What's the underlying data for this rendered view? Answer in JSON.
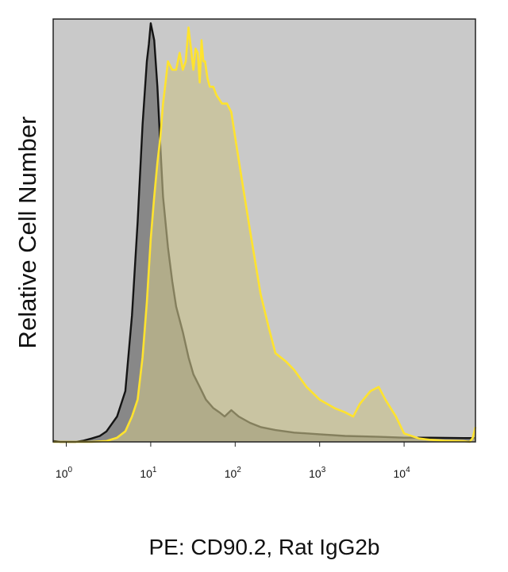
{
  "chart_data": {
    "type": "area",
    "title": "",
    "xlabel": "PE: CD90.2, Rat IgG2b",
    "ylabel": "Relative Cell Number",
    "x_scale": "log",
    "xlim": [
      0.7,
      70000
    ],
    "ylim": [
      0,
      1.0
    ],
    "grid": false,
    "x_ticks": [
      {
        "value": 1,
        "base": "10",
        "exp": "0"
      },
      {
        "value": 10,
        "base": "10",
        "exp": "1"
      },
      {
        "value": 100,
        "base": "10",
        "exp": "2"
      },
      {
        "value": 1000,
        "base": "10",
        "exp": "3"
      },
      {
        "value": 10000,
        "base": "10",
        "exp": "4"
      }
    ],
    "colors": {
      "plot_background": "#c9c9c9",
      "isotype_line": "#141414",
      "isotype_fill": "#7d7d7d",
      "stained_line": "#ffe32e",
      "stained_fill": "#c9c28b"
    },
    "series": [
      {
        "style": "isotype",
        "x": [
          0.7,
          0.85,
          1.0,
          1.3,
          1.6,
          2.0,
          2.5,
          3.0,
          4.0,
          5.0,
          6.0,
          7.0,
          8.0,
          9.0,
          9.5,
          10.0,
          11.0,
          12.0,
          13.0,
          14.0,
          16.0,
          18.0,
          20.0,
          24.0,
          28.0,
          32.0,
          38.0,
          45.0,
          55.0,
          65.0,
          75.0,
          90.0,
          110.0,
          150.0,
          200.0,
          300.0,
          500.0,
          1000.0,
          2000.0,
          5000.0,
          10000.0,
          20000.0,
          50000.0,
          70000.0
        ],
        "y": [
          0.002,
          0.0,
          0.0,
          0.0,
          0.003,
          0.008,
          0.014,
          0.025,
          0.06,
          0.12,
          0.3,
          0.52,
          0.75,
          0.9,
          0.94,
          0.99,
          0.95,
          0.84,
          0.7,
          0.58,
          0.46,
          0.38,
          0.32,
          0.26,
          0.2,
          0.16,
          0.13,
          0.1,
          0.08,
          0.07,
          0.06,
          0.075,
          0.06,
          0.045,
          0.035,
          0.028,
          0.022,
          0.018,
          0.014,
          0.012,
          0.01,
          0.01,
          0.009,
          0.009
        ]
      },
      {
        "style": "stained",
        "x": [
          0.7,
          1.0,
          2.0,
          3.0,
          4.0,
          5.0,
          6.0,
          7.0,
          8.0,
          9.0,
          10.0,
          11.0,
          12.0,
          13.0,
          14.0,
          15.0,
          16.0,
          18.0,
          20.0,
          22.0,
          24.0,
          26.0,
          28.0,
          30.0,
          32.0,
          34.0,
          36.0,
          38.0,
          40.0,
          42.0,
          44.0,
          47.0,
          50.0,
          55.0,
          60.0,
          70.0,
          80.0,
          90.0,
          100.0,
          120.0,
          150.0,
          200.0,
          250.0,
          300.0,
          400.0,
          500.0,
          700.0,
          1000.0,
          1500.0,
          2000.0,
          2500.0,
          3000.0,
          4000.0,
          5000.0,
          6000.0,
          8000.0,
          10000.0,
          15000.0,
          20000.0,
          30000.0,
          50000.0,
          60000.0,
          65000.0,
          70000.0
        ],
        "y": [
          0.0,
          0.0,
          0.0,
          0.002,
          0.01,
          0.025,
          0.06,
          0.1,
          0.2,
          0.33,
          0.48,
          0.58,
          0.66,
          0.72,
          0.8,
          0.85,
          0.9,
          0.88,
          0.88,
          0.92,
          0.88,
          0.9,
          0.98,
          0.93,
          0.88,
          0.93,
          0.92,
          0.85,
          0.95,
          0.9,
          0.9,
          0.86,
          0.84,
          0.84,
          0.82,
          0.8,
          0.8,
          0.78,
          0.72,
          0.62,
          0.5,
          0.35,
          0.27,
          0.21,
          0.19,
          0.17,
          0.13,
          0.1,
          0.08,
          0.07,
          0.06,
          0.09,
          0.12,
          0.13,
          0.1,
          0.06,
          0.02,
          0.008,
          0.005,
          0.003,
          0.002,
          0.0,
          0.01,
          0.035
        ]
      }
    ]
  }
}
